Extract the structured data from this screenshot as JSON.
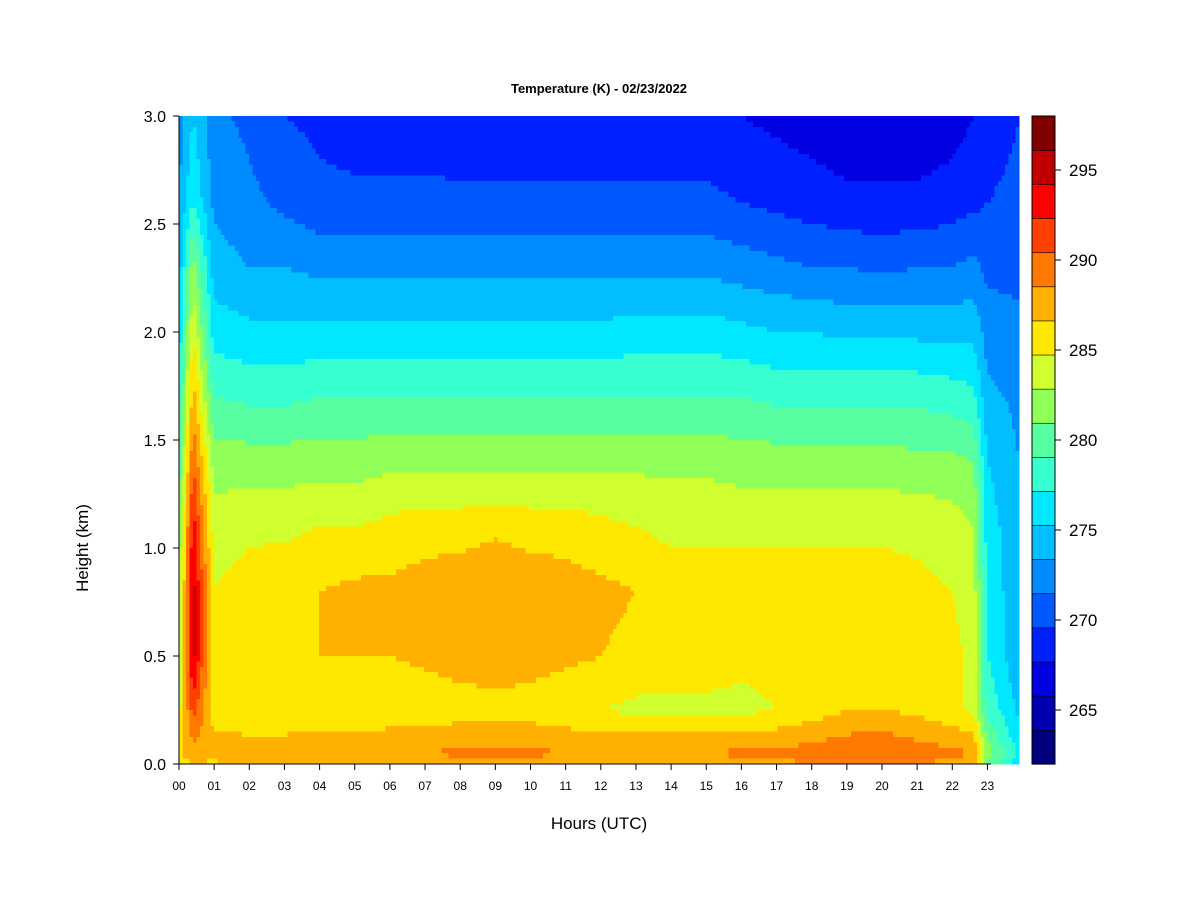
{
  "chart_data": {
    "type": "heatmap",
    "title": "Temperature (K) - 02/23/2022",
    "xlabel": "Hours (UTC)",
    "ylabel": "Height (km)",
    "xlim": [
      0,
      23.9
    ],
    "ylim": [
      0.0,
      3.0
    ],
    "x_ticks": [
      "00",
      "01",
      "02",
      "03",
      "04",
      "05",
      "06",
      "07",
      "08",
      "09",
      "10",
      "11",
      "12",
      "13",
      "14",
      "15",
      "16",
      "17",
      "18",
      "19",
      "20",
      "21",
      "22",
      "23"
    ],
    "y_ticks": [
      "0.0",
      "0.5",
      "1.0",
      "1.5",
      "2.0",
      "2.5",
      "3.0"
    ],
    "colorbar": {
      "levels": [
        262,
        264,
        266,
        268,
        270,
        272,
        274,
        276,
        278,
        280,
        282,
        284,
        286,
        288,
        290,
        292,
        294,
        296,
        298
      ],
      "colors": [
        "#00007F",
        "#0000B0",
        "#0000E0",
        "#0020FF",
        "#0058FF",
        "#008CFF",
        "#00BEFF",
        "#00E8FF",
        "#38FFD0",
        "#58FFA0",
        "#90FF58",
        "#D0FF30",
        "#FFE800",
        "#FFB000",
        "#FF7800",
        "#FF4000",
        "#FF0000",
        "#C00000",
        "#800000"
      ],
      "tick_labels": [
        "265",
        "270",
        "275",
        "280",
        "285",
        "290",
        "295"
      ],
      "tick_values": [
        265,
        270,
        275,
        280,
        285,
        290,
        295
      ]
    },
    "profile_heights_km": [
      0.0,
      0.05,
      0.25,
      0.5,
      0.8,
      1.1,
      1.4,
      1.7,
      2.0,
      2.3,
      2.6,
      3.0
    ],
    "profile_times_h": [
      0,
      0.4,
      1,
      2,
      3,
      4,
      5,
      6,
      7,
      8,
      9,
      10,
      11,
      12,
      13,
      14,
      15,
      16,
      17,
      18,
      19,
      20,
      21,
      22,
      22.6,
      23,
      23.9
    ],
    "temperature_K": [
      [
        286.5,
        288.0,
        285.0,
        283.5,
        283.0,
        282.0,
        280.0,
        278.5,
        276.5,
        275.0,
        274.0,
        273.0
      ],
      [
        288.0,
        289.0,
        293.0,
        297.0,
        297.0,
        295.0,
        292.0,
        289.0,
        286.0,
        283.0,
        278.0,
        276.0
      ],
      [
        287.5,
        289.0,
        287.0,
        286.0,
        286.0,
        285.0,
        283.0,
        280.0,
        277.0,
        275.0,
        273.5,
        272.5
      ],
      [
        288.5,
        289.5,
        286.0,
        287.0,
        287.0,
        285.5,
        283.0,
        279.5,
        276.5,
        274.0,
        272.5,
        271.5
      ],
      [
        288.5,
        289.5,
        286.0,
        287.5,
        287.5,
        285.5,
        283.0,
        279.5,
        276.5,
        274.0,
        271.5,
        270.0
      ],
      [
        289.0,
        290.0,
        286.0,
        288.0,
        288.0,
        286.0,
        283.0,
        280.0,
        276.5,
        273.5,
        270.5,
        269.5
      ],
      [
        289.0,
        290.0,
        286.0,
        288.0,
        288.5,
        286.0,
        283.0,
        280.0,
        276.5,
        273.5,
        270.5,
        269.0
      ],
      [
        289.0,
        290.0,
        286.5,
        288.0,
        288.5,
        286.5,
        283.5,
        280.0,
        276.5,
        273.5,
        270.5,
        269.0
      ],
      [
        289.0,
        290.0,
        286.5,
        288.5,
        289.0,
        287.0,
        283.5,
        280.0,
        276.5,
        273.5,
        270.5,
        269.0
      ],
      [
        289.0,
        290.5,
        287.0,
        289.0,
        289.5,
        287.0,
        283.5,
        280.0,
        276.5,
        273.5,
        270.5,
        268.5
      ],
      [
        289.0,
        290.5,
        287.0,
        289.5,
        290.0,
        287.5,
        283.5,
        280.0,
        276.5,
        273.5,
        270.5,
        268.5
      ],
      [
        289.0,
        290.5,
        287.0,
        289.0,
        289.5,
        287.0,
        283.5,
        280.0,
        276.5,
        273.5,
        270.5,
        268.5
      ],
      [
        289.0,
        290.0,
        286.5,
        288.5,
        289.0,
        287.0,
        283.5,
        280.0,
        276.5,
        273.5,
        270.5,
        268.5
      ],
      [
        289.0,
        290.0,
        286.0,
        288.0,
        288.5,
        286.5,
        283.5,
        280.0,
        276.5,
        273.5,
        270.5,
        268.5
      ],
      [
        289.0,
        290.0,
        285.5,
        287.5,
        288.0,
        286.0,
        283.5,
        280.0,
        277.0,
        273.5,
        270.5,
        268.5
      ],
      [
        289.0,
        290.0,
        285.5,
        287.0,
        287.0,
        285.5,
        283.5,
        280.0,
        277.0,
        273.5,
        270.5,
        268.5
      ],
      [
        289.0,
        290.0,
        285.5,
        287.0,
        287.0,
        285.5,
        283.5,
        280.0,
        277.0,
        273.5,
        270.5,
        268.5
      ],
      [
        289.0,
        290.5,
        285.5,
        286.5,
        287.0,
        285.5,
        283.0,
        280.0,
        276.5,
        273.0,
        270.0,
        268.0
      ],
      [
        289.5,
        290.5,
        286.0,
        286.5,
        287.0,
        285.5,
        283.0,
        279.5,
        276.0,
        272.5,
        269.5,
        267.5
      ],
      [
        290.0,
        291.0,
        287.0,
        287.0,
        287.0,
        285.5,
        283.0,
        279.5,
        276.0,
        272.0,
        269.0,
        267.0
      ],
      [
        290.5,
        291.5,
        288.0,
        287.5,
        287.0,
        285.5,
        283.0,
        279.5,
        275.5,
        272.0,
        268.5,
        266.5
      ],
      [
        290.5,
        292.0,
        288.0,
        287.5,
        287.0,
        285.5,
        283.0,
        279.5,
        275.5,
        271.5,
        268.5,
        266.5
      ],
      [
        290.0,
        291.0,
        287.5,
        287.0,
        286.5,
        285.5,
        282.5,
        279.5,
        275.5,
        272.0,
        268.5,
        266.5
      ],
      [
        289.5,
        290.5,
        286.5,
        286.5,
        286.0,
        285.0,
        282.5,
        279.0,
        275.5,
        272.0,
        269.0,
        267.0
      ],
      [
        289.0,
        290.0,
        285.5,
        285.5,
        285.0,
        284.0,
        282.0,
        278.5,
        275.5,
        272.5,
        269.5,
        268.0
      ],
      [
        282.0,
        283.0,
        279.5,
        278.0,
        277.5,
        277.0,
        276.0,
        274.5,
        273.0,
        271.5,
        270.0,
        269.0
      ],
      [
        277.0,
        277.5,
        275.5,
        274.5,
        274.5,
        274.5,
        274.0,
        273.5,
        272.5,
        271.5,
        270.5,
        270.0
      ]
    ]
  }
}
